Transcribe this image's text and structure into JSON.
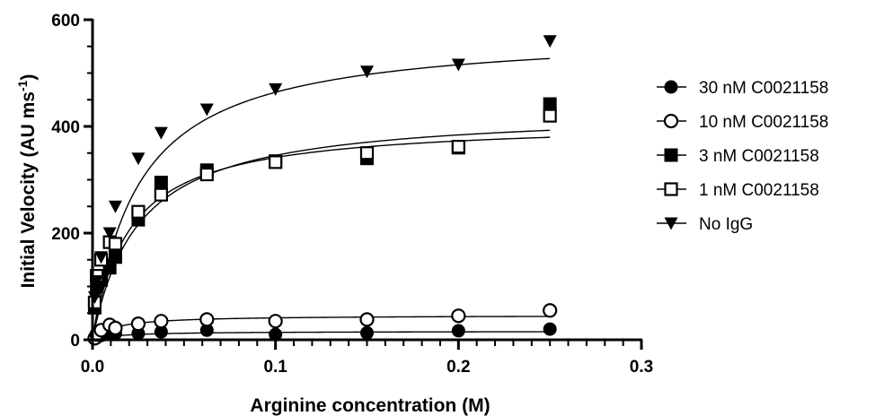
{
  "chart_data": {
    "type": "scatter",
    "xlabel": "Arginine concentration (M)",
    "ylabel_main": "Initial Velocity (AU ms",
    "ylabel_sup": "-1",
    "ylabel_close": ")",
    "xlim": [
      0,
      0.3
    ],
    "ylim": [
      0,
      600
    ],
    "x_ticks": [
      0,
      0.1,
      0.2,
      0.3
    ],
    "x_tick_labels": [
      "0.0",
      "0.1",
      "0.2",
      "0.3"
    ],
    "x_minor_step": 0.01,
    "y_ticks": [
      0,
      200,
      400,
      600
    ],
    "y_tick_labels": [
      "0",
      "200",
      "400",
      "600"
    ],
    "y_minor_step": 50,
    "grid": false,
    "legend_position": "right",
    "series": [
      {
        "name": "30 nM C0021158",
        "marker": "filled-circle",
        "x": [
          0.0012,
          0.0023,
          0.0047,
          0.0094,
          0.0125,
          0.025,
          0.0375,
          0.0625,
          0.1,
          0.15,
          0.2,
          0.25
        ],
        "y": [
          2,
          4,
          8,
          10,
          12,
          12,
          15,
          18,
          10,
          13,
          17,
          20
        ],
        "fit": {
          "vmax": 16,
          "km": 0.015
        }
      },
      {
        "name": "10 nM C0021158",
        "marker": "open-circle",
        "x": [
          0.0012,
          0.0023,
          0.0047,
          0.0094,
          0.0125,
          0.025,
          0.0375,
          0.0625,
          0.1,
          0.15,
          0.2,
          0.25
        ],
        "y": [
          3,
          10,
          18,
          28,
          22,
          30,
          35,
          38,
          35,
          38,
          45,
          55
        ],
        "fit": {
          "vmax": 46,
          "km": 0.012
        }
      },
      {
        "name": "3 nM C0021158",
        "marker": "filled-square",
        "x": [
          0.0012,
          0.0023,
          0.0047,
          0.0094,
          0.0125,
          0.025,
          0.0375,
          0.0625,
          0.1,
          0.15,
          0.2,
          0.25
        ],
        "y": [
          60,
          100,
          112,
          135,
          155,
          225,
          295,
          318,
          335,
          340,
          360,
          442
        ],
        "fit": {
          "vmax": 410,
          "km": 0.02
        }
      },
      {
        "name": "1 nM C0021158",
        "marker": "open-square",
        "x": [
          0.0012,
          0.0023,
          0.0047,
          0.0094,
          0.0125,
          0.025,
          0.0375,
          0.0625,
          0.1,
          0.15,
          0.2,
          0.25
        ],
        "y": [
          70,
          120,
          150,
          183,
          180,
          240,
          272,
          310,
          333,
          350,
          362,
          420
        ],
        "fit": {
          "vmax": 432,
          "km": 0.025
        }
      },
      {
        "name": "No IgG",
        "marker": "filled-triangle-down",
        "x": [
          0.0012,
          0.0023,
          0.0047,
          0.0094,
          0.0125,
          0.025,
          0.0375,
          0.0625,
          0.1,
          0.15,
          0.2,
          0.25
        ],
        "y": [
          80,
          110,
          155,
          200,
          250,
          340,
          388,
          432,
          470,
          503,
          516,
          560
        ],
        "fit": {
          "vmax": 580,
          "km": 0.025
        }
      }
    ]
  },
  "colors": {
    "ink": "#000000",
    "background": "#ffffff"
  }
}
